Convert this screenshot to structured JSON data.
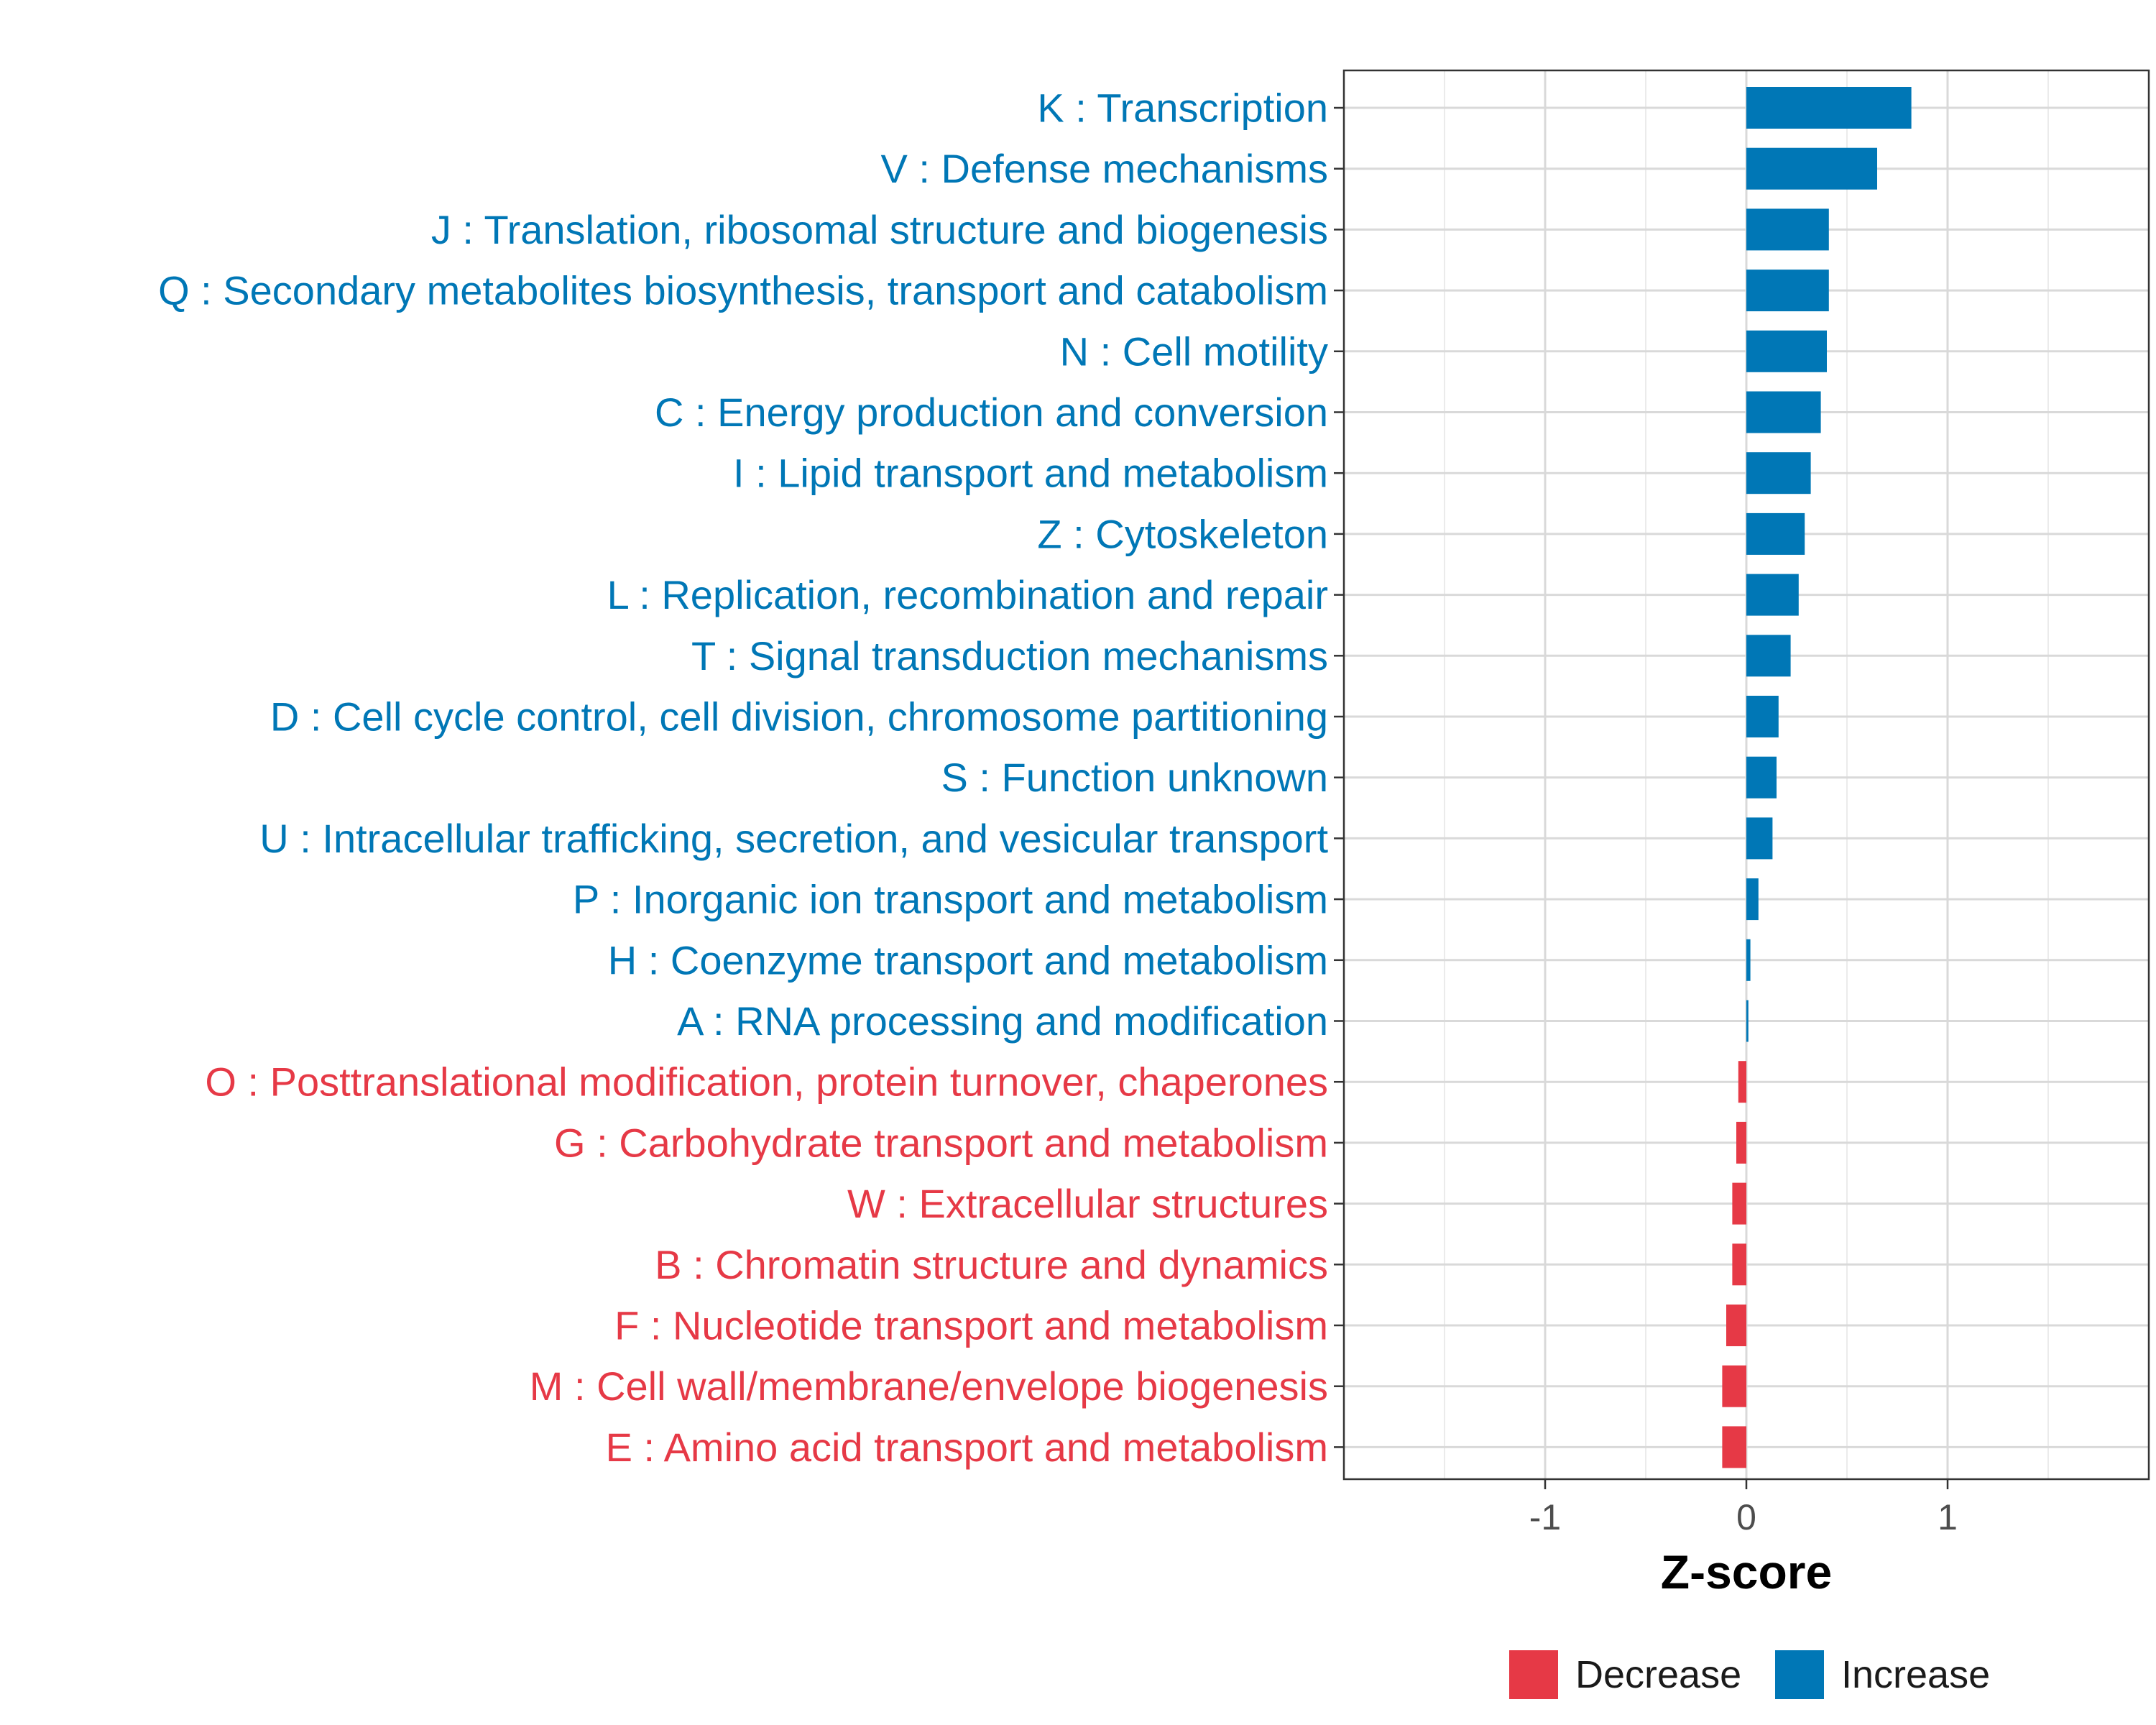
{
  "chart_data": {
    "type": "bar",
    "orientation": "horizontal",
    "title": "",
    "xlabel": "Z-score",
    "ylabel": "",
    "xlim": [
      -2,
      2
    ],
    "xticks": [
      -1,
      0,
      1
    ],
    "xtick_labels": [
      "-1",
      "0",
      "1"
    ],
    "grid": true,
    "legend_position": "bottom",
    "categories": [
      "K : Transcription",
      "V : Defense mechanisms",
      "J : Translation, ribosomal structure and biogenesis",
      "Q : Secondary metabolites biosynthesis, transport and catabolism",
      "N : Cell motility",
      "C : Energy production and conversion",
      "I : Lipid transport and metabolism",
      "Z : Cytoskeleton",
      "L : Replication, recombination and repair",
      "T : Signal transduction mechanisms",
      "D : Cell cycle control, cell division, chromosome partitioning",
      "S : Function unknown",
      "U : Intracellular trafficking, secretion, and vesicular transport",
      "P : Inorganic ion transport and metabolism",
      "H : Coenzyme transport and metabolism",
      "A : RNA processing and modification",
      "O : Posttranslational modification, protein turnover, chaperones",
      "G : Carbohydrate transport and metabolism",
      "W : Extracellular structures",
      "B : Chromatin structure and dynamics",
      "F : Nucleotide transport and metabolism",
      "M : Cell wall/membrane/envelope biogenesis",
      "E : Amino acid transport and metabolism"
    ],
    "values": [
      0.82,
      0.65,
      0.41,
      0.41,
      0.4,
      0.37,
      0.32,
      0.29,
      0.26,
      0.22,
      0.16,
      0.15,
      0.13,
      0.06,
      0.02,
      0.01,
      -0.04,
      -0.05,
      -0.07,
      -0.07,
      -0.1,
      -0.12,
      -0.12
    ],
    "groups": [
      "Increase",
      "Increase",
      "Increase",
      "Increase",
      "Increase",
      "Increase",
      "Increase",
      "Increase",
      "Increase",
      "Increase",
      "Increase",
      "Increase",
      "Increase",
      "Increase",
      "Increase",
      "Increase",
      "Decrease",
      "Decrease",
      "Decrease",
      "Decrease",
      "Decrease",
      "Decrease",
      "Decrease"
    ],
    "legend": [
      {
        "name": "Decrease",
        "color": "#e63946"
      },
      {
        "name": "Increase",
        "color": "#0077b6"
      }
    ]
  }
}
